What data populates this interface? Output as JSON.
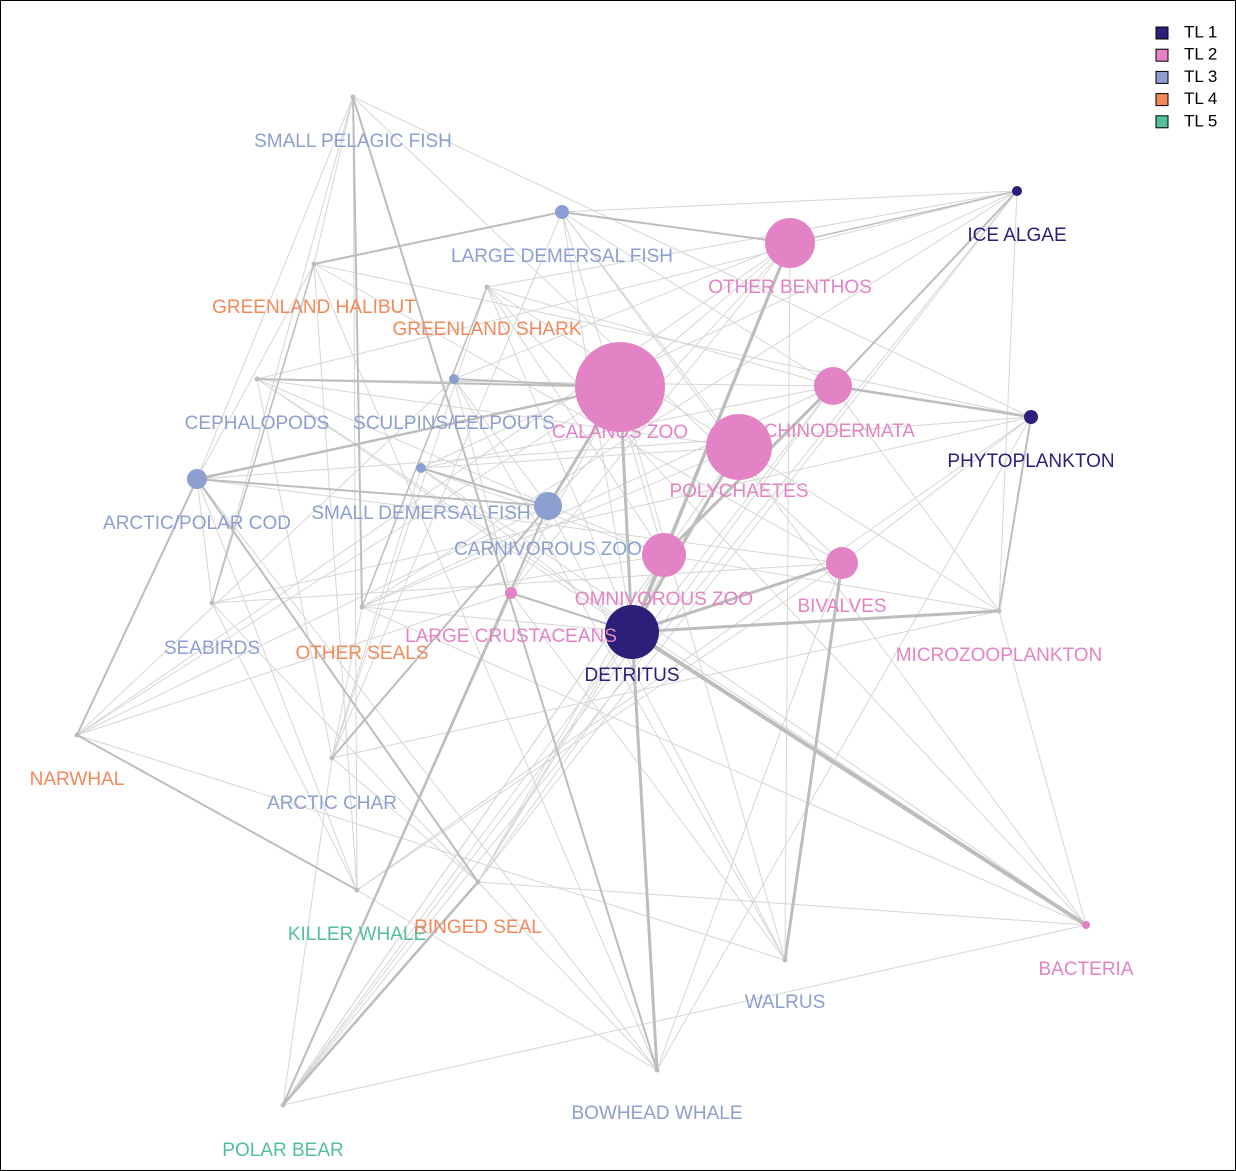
{
  "legend": [
    {
      "label": "TL 1",
      "color": "#2b1f7a"
    },
    {
      "label": "TL 2",
      "color": "#e383c5"
    },
    {
      "label": "TL 3",
      "color": "#8d9fd0"
    },
    {
      "label": "TL 4",
      "color": "#f2895a"
    },
    {
      "label": "TL 5",
      "color": "#52c197"
    }
  ],
  "nodes": [
    {
      "label": "SMALL PELAGIC FISH",
      "color": "#8d9fd0"
    },
    {
      "label": "LARGE DEMERSAL FISH",
      "color": "#8d9fd0"
    },
    {
      "label": "OTHER BENTHOS",
      "color": "#e383c5"
    },
    {
      "label": "ICE ALGAE",
      "color": "#2b1f7a"
    },
    {
      "label": "GREENLAND HALIBUT",
      "color": "#f2895a"
    },
    {
      "label": "GREENLAND SHARK",
      "color": "#f2895a"
    },
    {
      "label": "CALANUS ZOO",
      "color": "#e383c5"
    },
    {
      "label": "ECHINODERMATA",
      "color": "#e383c5"
    },
    {
      "label": "PHYTOPLANKTON",
      "color": "#2b1f7a"
    },
    {
      "label": "CEPHALOPODS",
      "color": "#8d9fd0"
    },
    {
      "label": "SCULPINS/EELPOUTS",
      "color": "#8d9fd0"
    },
    {
      "label": "POLYCHAETES",
      "color": "#e383c5"
    },
    {
      "label": "ARCTIC/POLAR COD",
      "color": "#8d9fd0"
    },
    {
      "label": "SMALL DEMERSAL FISH",
      "color": "#8d9fd0"
    },
    {
      "label": "CARNIVOROUS ZOO",
      "color": "#8d9fd0"
    },
    {
      "label": "OMNIVOROUS ZOO",
      "color": "#e383c5"
    },
    {
      "label": "BIVALVES",
      "color": "#e383c5"
    },
    {
      "label": "MICROZOOPLANKTON",
      "color": "#e383c5"
    },
    {
      "label": "LARGE CRUSTACEANS",
      "color": "#e383c5"
    },
    {
      "label": "DETRITUS",
      "color": "#2b1f7a"
    },
    {
      "label": "SEABIRDS",
      "color": "#8d9fd0"
    },
    {
      "label": "OTHER SEALS",
      "color": "#f2895a"
    },
    {
      "label": "NARWHAL",
      "color": "#f2895a"
    },
    {
      "label": "ARCTIC CHAR",
      "color": "#8d9fd0"
    },
    {
      "label": "KILLER WHALE",
      "color": "#52c197"
    },
    {
      "label": "RINGED SEAL",
      "color": "#f2895a"
    },
    {
      "label": "WALRUS",
      "color": "#8d9fd0"
    },
    {
      "label": "BACTERIA",
      "color": "#e383c5"
    },
    {
      "label": "BOWHEAD WHALE",
      "color": "#8d9fd0"
    },
    {
      "label": "POLAR BEAR",
      "color": "#52c197"
    }
  ]
}
